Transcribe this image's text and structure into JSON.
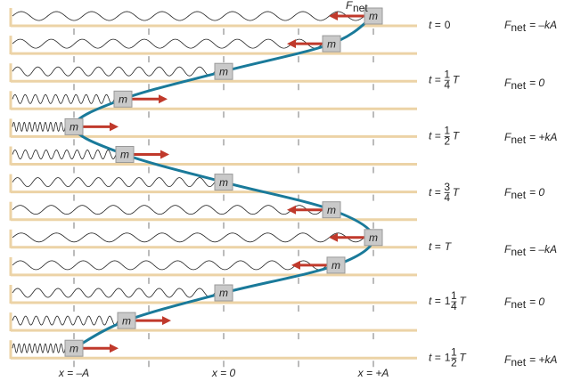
{
  "annotation": {
    "symbol": "F",
    "subscript": "net"
  },
  "rows": [
    {
      "mass": "m"
    },
    {
      "mass": "m"
    },
    {
      "mass": "m"
    },
    {
      "mass": "m"
    },
    {
      "mass": "m"
    },
    {
      "mass": "m"
    },
    {
      "mass": "m"
    },
    {
      "mass": "m"
    },
    {
      "mass": "m"
    },
    {
      "mass": "m"
    },
    {
      "mass": "m"
    },
    {
      "mass": "m"
    },
    {
      "mass": "m"
    }
  ],
  "time_labels": [
    {
      "prefix": "t =",
      "value": "0"
    },
    {
      "prefix": "t =",
      "numerator": "1",
      "denominator": "4",
      "symbol": "T"
    },
    {
      "prefix": "t =",
      "numerator": "1",
      "denominator": "2",
      "symbol": "T"
    },
    {
      "prefix": "t =",
      "numerator": "3",
      "denominator": "4",
      "symbol": "T"
    },
    {
      "prefix": "t =",
      "symbol": "T"
    },
    {
      "prefix": "t =",
      "whole": "1",
      "numerator": "1",
      "denominator": "4",
      "symbol": "T"
    },
    {
      "prefix": "t =",
      "whole": "1",
      "numerator": "1",
      "denominator": "2",
      "symbol": "T"
    }
  ],
  "force_labels": [
    {
      "symbol": "F",
      "subscript": "net",
      "value": "= –kA"
    },
    {
      "symbol": "F",
      "subscript": "net",
      "value": "= 0"
    },
    {
      "symbol": "F",
      "subscript": "net",
      "value": "= +kA"
    },
    {
      "symbol": "F",
      "subscript": "net",
      "value": "= 0"
    },
    {
      "symbol": "F",
      "subscript": "net",
      "value": "= –kA"
    },
    {
      "symbol": "F",
      "subscript": "net",
      "value": "= 0"
    },
    {
      "symbol": "F",
      "subscript": "net",
      "value": "= +kA"
    }
  ],
  "axis_labels": [
    "x = –A",
    "x = 0",
    "x = +A"
  ]
}
